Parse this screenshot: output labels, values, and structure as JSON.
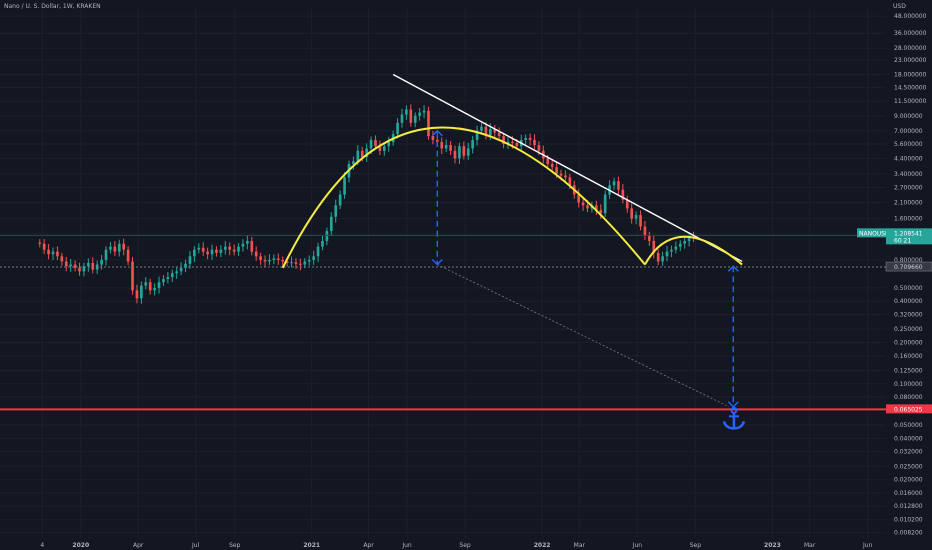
{
  "header": {
    "symbol_line": "Nano / U. S. Dollar, 1W, KRAKEN"
  },
  "chart_data": {
    "type": "candlestick",
    "title": "Nano / U. S. Dollar, 1W, KRAKEN",
    "currency_label": "USD",
    "y_scale": "log",
    "ylim": [
      0.0075,
      55
    ],
    "y_ticks": [
      {
        "label": "48.000000",
        "value": 48
      },
      {
        "label": "36.000000",
        "value": 36
      },
      {
        "label": "28.000000",
        "value": 28
      },
      {
        "label": "23.000000",
        "value": 23
      },
      {
        "label": "18.000000",
        "value": 18
      },
      {
        "label": "14.500000",
        "value": 14.5
      },
      {
        "label": "11.500000",
        "value": 11.5
      },
      {
        "label": "9.000000",
        "value": 9
      },
      {
        "label": "7.000000",
        "value": 7
      },
      {
        "label": "5.600000",
        "value": 5.6
      },
      {
        "label": "4.400000",
        "value": 4.4
      },
      {
        "label": "3.400000",
        "value": 3.4
      },
      {
        "label": "2.700000",
        "value": 2.7
      },
      {
        "label": "2.100000",
        "value": 2.1
      },
      {
        "label": "1.600000",
        "value": 1.6
      },
      {
        "label": "1.250000",
        "value": 1.25
      },
      {
        "label": "0.800000",
        "value": 0.8
      },
      {
        "label": "0.500000",
        "value": 0.5
      },
      {
        "label": "0.400000",
        "value": 0.4
      },
      {
        "label": "0.320000",
        "value": 0.32
      },
      {
        "label": "0.250000",
        "value": 0.25
      },
      {
        "label": "0.200000",
        "value": 0.2
      },
      {
        "label": "0.160000",
        "value": 0.16
      },
      {
        "label": "0.125000",
        "value": 0.125
      },
      {
        "label": "0.100000",
        "value": 0.1
      },
      {
        "label": "0.080000",
        "value": 0.08
      },
      {
        "label": "0.050000",
        "value": 0.05
      },
      {
        "label": "0.040000",
        "value": 0.04
      },
      {
        "label": "0.032000",
        "value": 0.032
      },
      {
        "label": "0.025000",
        "value": 0.025
      },
      {
        "label": "0.020000",
        "value": 0.02
      },
      {
        "label": "0.016000",
        "value": 0.016
      },
      {
        "label": "0.012800",
        "value": 0.0128
      },
      {
        "label": "0.010200",
        "value": 0.0102
      },
      {
        "label": "0.008200",
        "value": 0.0082
      }
    ],
    "x_start": "2019-08-26",
    "x_end": "2023-06-30",
    "x_ticks": [
      {
        "label": "4",
        "date": "2019-11-01",
        "bold": false
      },
      {
        "label": "2020",
        "date": "2020-01-01",
        "bold": true
      },
      {
        "label": "Apr",
        "date": "2020-04-01",
        "bold": false
      },
      {
        "label": "Jul",
        "date": "2020-07-01",
        "bold": false
      },
      {
        "label": "Sep",
        "date": "2020-09-01",
        "bold": false
      },
      {
        "label": "2021",
        "date": "2021-01-01",
        "bold": true
      },
      {
        "label": "Apr",
        "date": "2021-04-01",
        "bold": false
      },
      {
        "label": "Jun",
        "date": "2021-06-01",
        "bold": false
      },
      {
        "label": "Sep",
        "date": "2021-09-01",
        "bold": false
      },
      {
        "label": "2022",
        "date": "2022-01-01",
        "bold": true
      },
      {
        "label": "Mar",
        "date": "2022-03-01",
        "bold": false
      },
      {
        "label": "Jun",
        "date": "2022-06-01",
        "bold": false
      },
      {
        "label": "Sep",
        "date": "2022-09-01",
        "bold": false
      },
      {
        "label": "2023",
        "date": "2023-01-01",
        "bold": true
      },
      {
        "label": "Mar",
        "date": "2023-03-01",
        "bold": false
      },
      {
        "label": "Jun",
        "date": "2023-06-01",
        "bold": false
      }
    ],
    "candle_start": "2019-10-28",
    "candle_interval_days": 7,
    "closes": [
      1.05,
      0.95,
      0.88,
      0.92,
      0.85,
      0.78,
      0.72,
      0.74,
      0.7,
      0.66,
      0.72,
      0.76,
      0.68,
      0.74,
      0.8,
      0.95,
      1.0,
      0.92,
      1.05,
      0.95,
      0.78,
      0.48,
      0.42,
      0.52,
      0.55,
      0.48,
      0.5,
      0.55,
      0.58,
      0.6,
      0.64,
      0.66,
      0.7,
      0.75,
      0.85,
      0.95,
      0.98,
      0.92,
      0.88,
      0.95,
      0.9,
      0.95,
      1.0,
      0.95,
      0.92,
      1.0,
      1.05,
      1.1,
      0.92,
      0.85,
      0.8,
      0.78,
      0.8,
      0.82,
      0.8,
      0.78,
      0.76,
      0.77,
      0.75,
      0.74,
      0.78,
      0.8,
      0.85,
      1.0,
      1.1,
      1.3,
      1.65,
      2.0,
      2.4,
      3.2,
      4.0,
      4.2,
      5.0,
      4.5,
      5.2,
      6.0,
      5.4,
      5.0,
      5.4,
      5.8,
      6.6,
      8.0,
      9.2,
      10.0,
      8.0,
      9.0,
      9.5,
      9.8,
      6.4,
      6.0,
      5.8,
      5.2,
      5.5,
      5.0,
      4.4,
      5.4,
      4.6,
      5.2,
      6.0,
      7.0,
      7.5,
      6.5,
      7.2,
      6.8,
      6.4,
      5.6,
      5.8,
      5.7,
      5.4,
      6.0,
      6.2,
      6.0,
      5.5,
      5.0,
      4.4,
      4.0,
      3.8,
      3.4,
      3.3,
      3.2,
      2.8,
      2.4,
      2.1,
      2.0,
      1.9,
      2.0,
      1.85,
      1.75,
      2.4,
      2.8,
      3.0,
      2.6,
      2.2,
      1.9,
      1.6,
      1.7,
      1.4,
      1.2,
      1.1,
      0.9,
      0.78,
      0.85,
      0.92,
      0.95,
      1.0,
      1.05,
      1.1,
      1.15,
      1.2
    ],
    "last_price": {
      "label": "1.208541",
      "value": 1.208541,
      "subtext": "60 21",
      "color": "#26a69a",
      "symbol": "NANOUSD"
    },
    "support_price": {
      "label": "0.709660",
      "value": 0.70966
    },
    "target_price": {
      "label": "0.065025",
      "value": 0.065025,
      "color": "#f23645"
    },
    "trendline": {
      "from": {
        "date": "2021-05-10",
        "price": 18
      },
      "to": {
        "date": "2022-11-14",
        "price": 0.78
      }
    },
    "arc_main": {
      "start": {
        "date": "2020-11-16",
        "price": 0.7
      },
      "peak": {
        "date": "2021-07-26",
        "price": 7.4
      },
      "end": {
        "date": "2022-06-13",
        "price": 0.74
      }
    },
    "arc_small": {
      "start": {
        "date": "2022-06-13",
        "price": 0.74
      },
      "peak": {
        "date": "2022-08-15",
        "price": 1.18
      },
      "end": {
        "date": "2022-11-14",
        "price": 0.74
      }
    },
    "dotted_line": {
      "from": {
        "date": "2021-07-19",
        "price": 0.74
      },
      "to": {
        "date": "2022-10-24",
        "price": 0.068
      }
    },
    "measure_arrows": [
      {
        "date": "2021-07-19",
        "from_price": 7.0,
        "to_price": 0.74
      },
      {
        "date": "2022-10-31",
        "from_price": 0.72,
        "to_price": 0.068
      }
    ],
    "anchor": {
      "date": "2022-11-01",
      "price": 0.055
    },
    "colors": {
      "up": "#26a69a",
      "down": "#ef5350",
      "arc": "#f5ec3f",
      "trend": "#ffffff",
      "target": "#f23645",
      "arrow": "#2962ff"
    }
  }
}
